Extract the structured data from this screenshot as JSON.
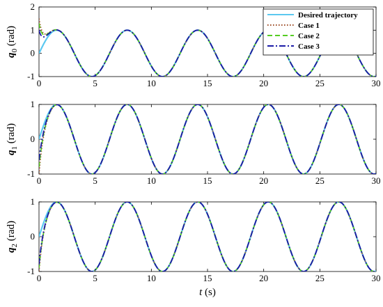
{
  "chart_data": {
    "type": "line",
    "x_label": {
      "var": "t",
      "unit": "(s)"
    },
    "x_ticks": [
      0,
      5,
      10,
      15,
      20,
      25,
      30
    ],
    "xlim": [
      0,
      30
    ],
    "legend": {
      "placement": "top-right",
      "entries": [
        "Desired trajectory",
        "Case 1",
        "Case 2",
        "Case 3"
      ]
    },
    "series_styles": [
      {
        "name": "Desired trajectory",
        "color": "#5bc8f0",
        "dash": "solid"
      },
      {
        "name": "Case 1",
        "color": "#a0522d",
        "dash": "dotted"
      },
      {
        "name": "Case 2",
        "color": "#55cc22",
        "dash": "dashed"
      },
      {
        "name": "Case 3",
        "color": "#1a1aa6",
        "dash": "dashdot"
      }
    ],
    "desired_trajectory": {
      "amplitude": 1,
      "period": 6.28,
      "phase": 0
    },
    "panels": [
      {
        "ylabel": {
          "var": "q",
          "sub": "0",
          "unit": "(rad)"
        },
        "ylim": [
          -1,
          2
        ],
        "y_ticks": [
          -1,
          0,
          1,
          2
        ],
        "initial": {
          "Case 1": 1.5,
          "Case 2": 1.3,
          "Case 3": 1.0
        }
      },
      {
        "ylabel": {
          "var": "q",
          "sub": "1",
          "unit": "(rad)"
        },
        "ylim": [
          -1,
          1
        ],
        "y_ticks": [
          -1,
          0,
          1
        ],
        "initial": {
          "Case 1": -1.0,
          "Case 2": -0.8,
          "Case 3": -0.6
        }
      },
      {
        "ylabel": {
          "var": "q",
          "sub": "2",
          "unit": "(rad)"
        },
        "ylim": [
          -1,
          1
        ],
        "y_ticks": [
          -1,
          0,
          1
        ],
        "initial": {
          "Case 1": -1.0,
          "Case 2": -0.9,
          "Case 3": -0.8
        }
      }
    ]
  }
}
